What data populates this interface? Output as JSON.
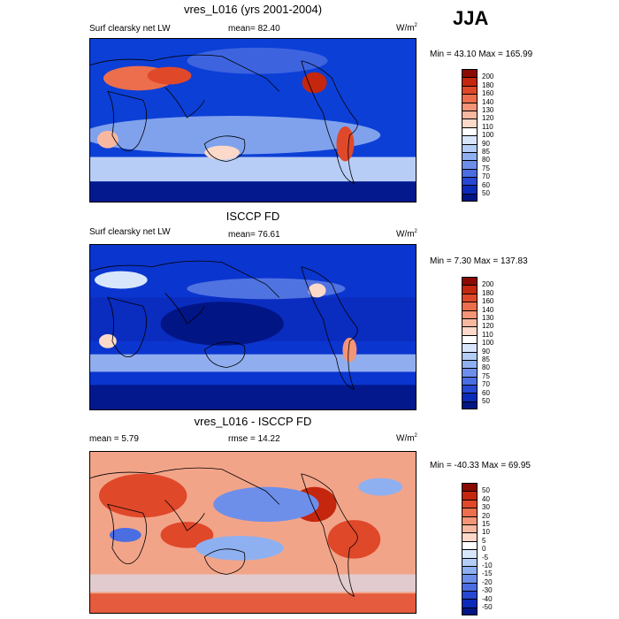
{
  "season": "JJA",
  "panels": [
    {
      "title": "vres_L016 (yrs 2001-2004)",
      "left_label": "Surf clearsky net LW",
      "center_label": "mean=  82.40",
      "unit": "W/m",
      "unit_sup": "2",
      "minmax": "Min =  43.10 Max = 165.99",
      "base_color": "#0c3fd6",
      "colorbar": {
        "labels": [
          "200",
          "180",
          "160",
          "140",
          "130",
          "120",
          "110",
          "100",
          "90",
          "85",
          "80",
          "75",
          "70",
          "60",
          "50"
        ],
        "colors": [
          "#8b0a00",
          "#c4270d",
          "#e0482a",
          "#ec6e4c",
          "#f39576",
          "#f8b8a0",
          "#fcd9c8",
          "#ffffff",
          "#d7e6fb",
          "#b2cdf6",
          "#8fb0f0",
          "#6d8fea",
          "#4a6de1",
          "#2748d3",
          "#0a2aba",
          "#021585"
        ]
      }
    },
    {
      "title": "ISCCP FD",
      "left_label": "Surf clearsky net LW",
      "center_label": "mean=  76.61",
      "unit": "W/m",
      "unit_sup": "2",
      "minmax": "Min =   7.30 Max = 137.83",
      "base_color": "#0b35cf",
      "colorbar": {
        "labels": [
          "200",
          "180",
          "160",
          "140",
          "130",
          "120",
          "110",
          "100",
          "90",
          "85",
          "80",
          "75",
          "70",
          "60",
          "50"
        ],
        "colors": [
          "#8b0a00",
          "#c4270d",
          "#e0482a",
          "#ec6e4c",
          "#f39576",
          "#f8b8a0",
          "#fcd9c8",
          "#ffffff",
          "#d7e6fb",
          "#b2cdf6",
          "#8fb0f0",
          "#6d8fea",
          "#4a6de1",
          "#2748d3",
          "#0a2aba",
          "#021585"
        ]
      }
    },
    {
      "title": "vres_L016 - ISCCP FD",
      "left_label": "mean =   5.79",
      "center_label": "rmse =  14.22",
      "unit": "W/m",
      "unit_sup": "2",
      "minmax": "Min = -40.33 Max =  69.95",
      "base_color": "#f2a489",
      "colorbar": {
        "labels": [
          "50",
          "40",
          "30",
          "20",
          "15",
          "10",
          "5",
          "0",
          "-5",
          "-10",
          "-15",
          "-20",
          "-30",
          "-40",
          "-50"
        ],
        "colors": [
          "#8b0a00",
          "#c4270d",
          "#e0482a",
          "#ec6e4c",
          "#f39576",
          "#f8b8a0",
          "#fcd9c8",
          "#ffffff",
          "#d7e6fb",
          "#b2cdf6",
          "#8fb0f0",
          "#6d8fea",
          "#4a6de1",
          "#2748d3",
          "#0a2aba",
          "#021585"
        ]
      }
    }
  ]
}
